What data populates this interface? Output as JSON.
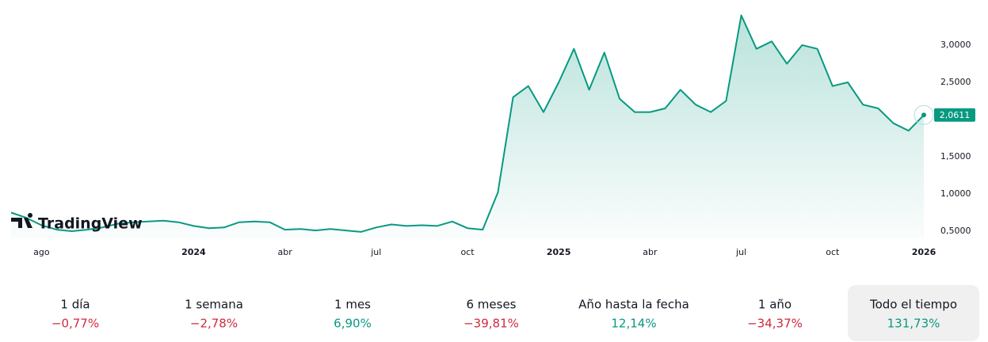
{
  "logo": "TradingView",
  "chart_data": {
    "type": "area",
    "color": "#089981",
    "categories": [
      null,
      null,
      "ago",
      null,
      null,
      null,
      null,
      null,
      null,
      null,
      null,
      null,
      "2024",
      null,
      null,
      null,
      null,
      null,
      "abr",
      null,
      null,
      null,
      null,
      null,
      "jul",
      null,
      null,
      null,
      null,
      null,
      "oct",
      null,
      null,
      null,
      null,
      null,
      "2025",
      null,
      null,
      null,
      null,
      null,
      "abr",
      null,
      null,
      null,
      null,
      null,
      "jul",
      null,
      null,
      null,
      null,
      null,
      "oct",
      null,
      null,
      null,
      null,
      null,
      "2026"
    ],
    "values": [
      0.75,
      0.68,
      0.58,
      0.52,
      0.5,
      0.52,
      0.55,
      0.6,
      0.62,
      0.63,
      0.64,
      0.62,
      0.57,
      0.54,
      0.55,
      0.62,
      0.63,
      0.62,
      0.52,
      0.53,
      0.51,
      0.53,
      0.51,
      0.49,
      0.55,
      0.59,
      0.57,
      0.58,
      0.57,
      0.63,
      0.54,
      0.52,
      1.02,
      2.3,
      2.45,
      2.1,
      2.5,
      2.95,
      2.4,
      2.9,
      2.28,
      2.1,
      2.1,
      2.15,
      2.4,
      2.2,
      2.1,
      2.25,
      3.4,
      2.95,
      3.05,
      2.75,
      3.0,
      2.95,
      2.45,
      2.5,
      2.2,
      2.15,
      1.95,
      1.85,
      2.0611
    ],
    "value_labels": [
      null,
      null,
      null,
      null,
      null,
      null,
      null,
      null,
      null,
      null,
      null,
      null,
      null,
      null,
      null,
      null,
      null,
      null,
      null,
      null,
      null,
      null,
      null,
      null,
      null,
      null,
      null,
      null,
      null,
      null,
      null,
      null,
      null,
      null,
      null,
      null,
      null,
      null,
      null,
      null,
      null,
      null,
      null,
      null,
      null,
      null,
      null,
      null,
      null,
      null,
      null,
      null,
      null,
      null,
      null,
      null,
      null,
      null,
      null,
      null,
      "2,0611"
    ],
    "ylim": [
      0.4,
      3.55
    ],
    "yticks": [
      {
        "value": 0.5,
        "label": "0,5000"
      },
      {
        "value": 1.0,
        "label": "1,0000"
      },
      {
        "value": 1.5,
        "label": "1,5000"
      },
      {
        "value": 2.5,
        "label": "2,5000"
      },
      {
        "value": 3.0,
        "label": "3,0000"
      }
    ],
    "year_labels": [
      "2024",
      "2025",
      "2026"
    ]
  },
  "periods": [
    {
      "label": "1 día",
      "value": -0.77,
      "value_label": "−0,77%"
    },
    {
      "label": "1 semana",
      "value": -2.78,
      "value_label": "−2,78%"
    },
    {
      "label": "1 mes",
      "value": 6.9,
      "value_label": "6,90%"
    },
    {
      "label": "6 meses",
      "value": -39.81,
      "value_label": "−39,81%"
    },
    {
      "label": "Año hasta la fecha",
      "value": 12.14,
      "value_label": "12,14%"
    },
    {
      "label": "1 año",
      "value": -34.37,
      "value_label": "−34,37%"
    },
    {
      "label": "Todo el tiempo",
      "value": 131.73,
      "value_label": "131,73%",
      "selected": true
    }
  ]
}
